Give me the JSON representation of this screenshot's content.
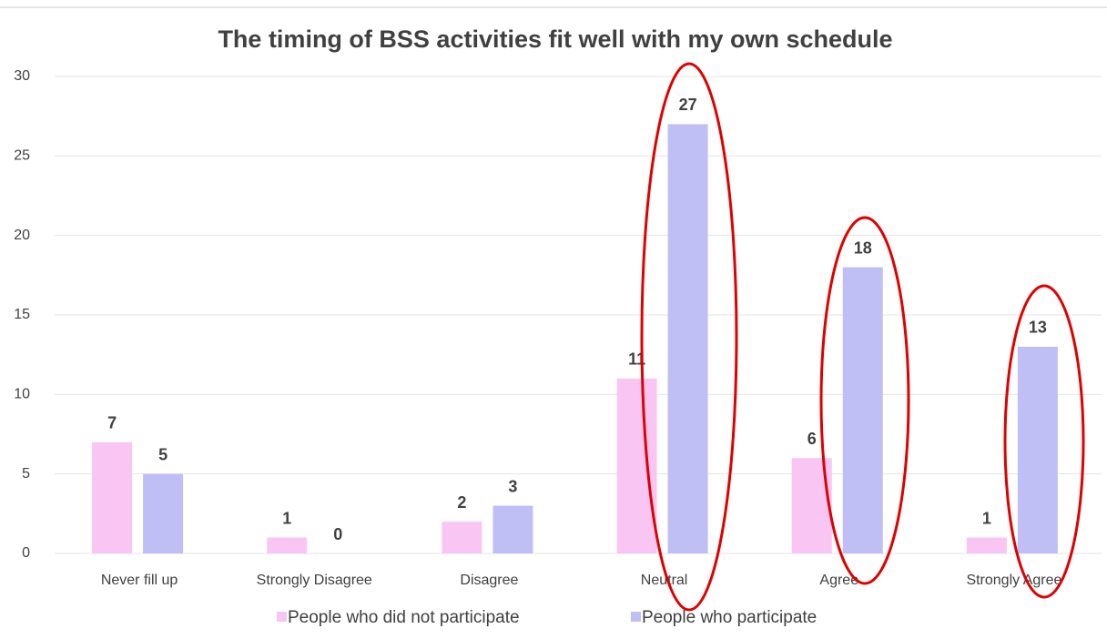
{
  "chart_data": {
    "type": "bar",
    "title": "The timing of BSS activities fit well with my own schedule",
    "categories": [
      "Never fill up",
      "Strongly Disagree",
      "Disagree",
      "Neutral",
      "Agree",
      "Strongly Agree"
    ],
    "series": [
      {
        "name": "People who did not participate",
        "color": "#f9c6f3",
        "values": [
          7,
          1,
          2,
          11,
          6,
          1
        ]
      },
      {
        "name": "People who participate",
        "color": "#bfbff5",
        "values": [
          5,
          0,
          3,
          27,
          18,
          13
        ]
      }
    ],
    "ylim": [
      0,
      30
    ],
    "yticks": [
      0,
      5,
      10,
      15,
      20,
      25,
      30
    ],
    "grid": true,
    "legend": "bottom"
  }
}
